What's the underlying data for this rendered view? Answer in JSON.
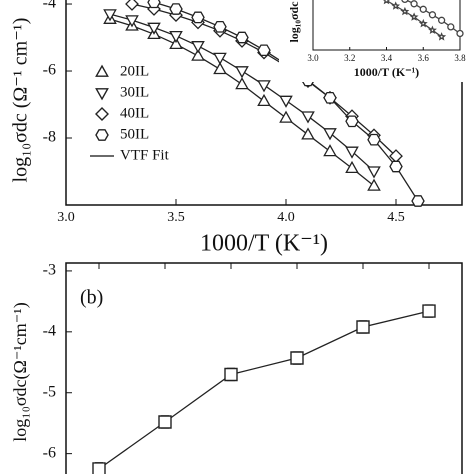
{
  "chart_data": [
    {
      "type": "line",
      "ylabel": "log₁₀σdc (Ω⁻¹ cm⁻¹)",
      "xlabel": "1000/T (K⁻¹)",
      "xlim": [
        3.0,
        4.8
      ],
      "xticks": [
        {
          "value": 3.0,
          "label": "3.0"
        },
        3.5,
        {
          "value": 4.0,
          "label": "4.0"
        },
        4.5
      ],
      "ylim": [
        -10,
        -3.85
      ],
      "yticks": [
        -4,
        -6,
        -8
      ],
      "legend": "left",
      "fit_label": "VTF Fit",
      "series": [
        {
          "name": "20IL",
          "marker": "triangle-up",
          "color": "#222222",
          "x": [
            3.2,
            3.3,
            3.4,
            3.5,
            3.6,
            3.7,
            3.8,
            3.9,
            4.0,
            4.1,
            4.2,
            4.3,
            4.4
          ],
          "values": [
            -4.45,
            -4.65,
            -4.9,
            -5.2,
            -5.55,
            -5.95,
            -6.4,
            -6.9,
            -7.4,
            -7.9,
            -8.4,
            -8.9,
            -9.43
          ]
        },
        {
          "name": "30IL",
          "marker": "triangle-down",
          "color": "#222222",
          "x": [
            3.2,
            3.3,
            3.4,
            3.5,
            3.6,
            3.7,
            3.8,
            3.9,
            4.0,
            4.1,
            4.2,
            4.3,
            4.4
          ],
          "values": [
            -4.3,
            -4.48,
            -4.7,
            -4.95,
            -5.25,
            -5.6,
            -6.0,
            -6.42,
            -6.88,
            -7.35,
            -7.85,
            -8.4,
            -8.99
          ]
        },
        {
          "name": "40IL",
          "marker": "diamond",
          "color": "#222222",
          "x": [
            3.3,
            3.4,
            3.5,
            3.6,
            3.7,
            3.8,
            3.9,
            4.0,
            4.1,
            4.2,
            4.3,
            4.4,
            4.5
          ],
          "values": [
            -4.0,
            -4.15,
            -4.33,
            -4.55,
            -4.8,
            -5.1,
            -5.45,
            -5.85,
            -6.3,
            -6.8,
            -7.35,
            -7.92,
            -8.54
          ]
        },
        {
          "name": "50IL",
          "marker": "hexagon",
          "color": "#222222",
          "x": [
            3.4,
            3.5,
            3.6,
            3.7,
            3.8,
            3.9,
            4.0,
            4.1,
            4.2,
            4.3,
            4.4,
            4.5,
            4.6
          ],
          "values": [
            -3.95,
            -4.15,
            -4.4,
            -4.68,
            -5.0,
            -5.38,
            -5.8,
            -6.28,
            -6.8,
            -7.5,
            -8.05,
            -8.85,
            -9.88
          ]
        }
      ]
    },
    {
      "type": "line",
      "ylabel": "log₁₀σdc",
      "xlabel": "1000/T (K⁻¹)",
      "xlim": [
        3.0,
        3.8
      ],
      "xticks": [
        {
          "value": 3.0,
          "label": "3.0"
        },
        3.2,
        3.4,
        3.6,
        3.8
      ],
      "ylim": [
        -9,
        -4
      ],
      "series": [
        {
          "marker": "star",
          "color": "#444444",
          "x": [
            3.4,
            3.45,
            3.5,
            3.55,
            3.6,
            3.65,
            3.7
          ],
          "values": [
            -4.5,
            -5.0,
            -5.5,
            -6.0,
            -6.6,
            -7.2,
            -7.8
          ]
        },
        {
          "marker": "circle",
          "color": "#444444",
          "x": [
            3.5,
            3.55,
            3.6,
            3.65,
            3.7,
            3.75,
            3.8
          ],
          "values": [
            -4.4,
            -4.8,
            -5.3,
            -5.8,
            -6.3,
            -6.9,
            -7.5
          ]
        }
      ]
    },
    {
      "type": "errorbar",
      "panel": "(b)",
      "ylabel": "log₁₀σdc(Ω⁻¹cm⁻¹)",
      "categories": [
        null,
        null,
        null,
        null,
        null,
        null
      ],
      "values": [
        -6.25,
        -5.48,
        -4.7,
        -4.43,
        -3.92,
        -3.66
      ],
      "errors": [
        0.1,
        0.1,
        0.1,
        0.1,
        0.1,
        0.1
      ],
      "marker": "square",
      "color": "#222222",
      "ylim": [
        -6.4,
        -2.87
      ],
      "yticks": [
        -3,
        -4,
        -5,
        -6
      ]
    }
  ]
}
